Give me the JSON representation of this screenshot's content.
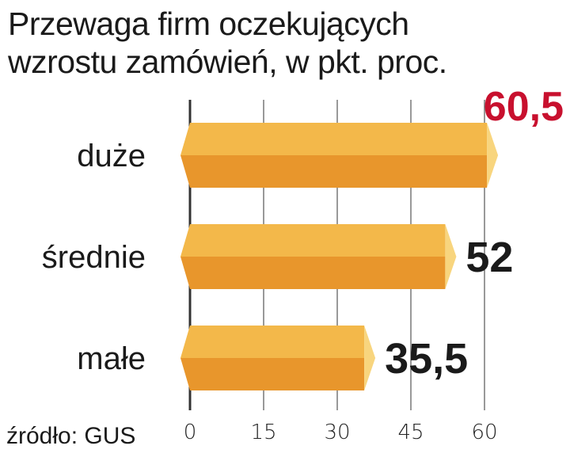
{
  "chart_data": {
    "type": "bar",
    "orientation": "horizontal",
    "title_lines": [
      "Przewaga firm oczekujących",
      "wzrostu zamówień, w pkt. proc."
    ],
    "categories": [
      "duże",
      "średnie",
      "małe"
    ],
    "values": [
      60.5,
      52,
      35.5
    ],
    "value_labels": [
      "60,5",
      "52",
      "35,5"
    ],
    "highlight_index": 0,
    "xticks": [
      "0",
      "15",
      "30",
      "45",
      "60"
    ],
    "xtick_values": [
      0,
      15,
      30,
      45,
      60
    ],
    "xlim": [
      0,
      60.5
    ],
    "grid": true,
    "source": "źródło: GUS",
    "colors": {
      "bar_top": "#f3b84a",
      "bar_bottom": "#e8962c",
      "bar_cap": "#f8d57e",
      "highlight_label": "#c8102e",
      "label": "#1a1a1a",
      "grid": "#333333"
    }
  }
}
